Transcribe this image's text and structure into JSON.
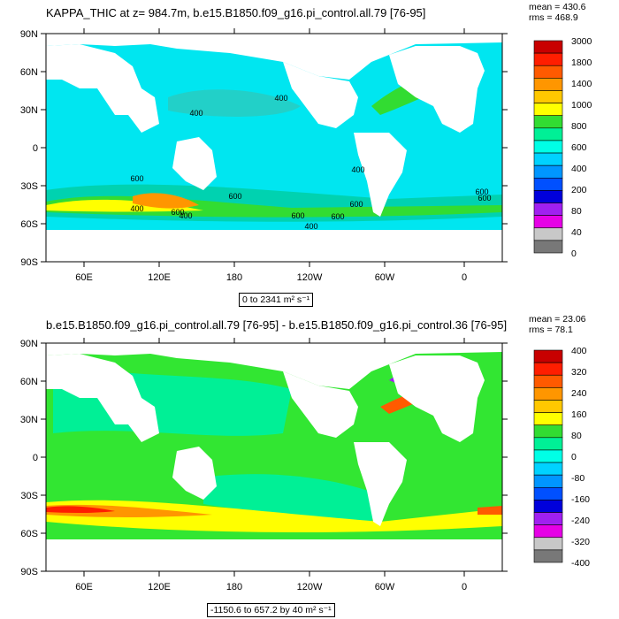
{
  "chart_data": [
    {
      "type": "heatmap",
      "title": "KAPPA_THIC at z= 984.7m, b.e15.B1850.f09_g16.pi_control.all.79 [76-95]",
      "stats": {
        "mean": "mean = 430.6",
        "rms": "rms = 468.9"
      },
      "range_label": "0 to 2341 m² s⁻¹",
      "x_tick_labels": [
        "60E",
        "120E",
        "180",
        "120W",
        "60W",
        "0"
      ],
      "y_tick_labels": [
        "90N",
        "60N",
        "30N",
        "0",
        "30S",
        "60S",
        "90S"
      ],
      "xlim": [
        30,
        390
      ],
      "ylim": [
        -90,
        90
      ],
      "contour_labels": [
        "400",
        "400",
        "400",
        "600",
        "600",
        "600",
        "600",
        "400",
        "400",
        "600",
        "600",
        "400",
        "600",
        "600"
      ],
      "colorbar_labels": [
        "3000",
        "1800",
        "1400",
        "1000",
        "800",
        "600",
        "400",
        "200",
        "80",
        "40",
        "0"
      ],
      "colorbar_colors": [
        "#c80000",
        "#ff1e00",
        "#ff5a00",
        "#ff9600",
        "#ffc800",
        "#ffff00",
        "#32dc32",
        "#00f096",
        "#00ffe6",
        "#00d2ff",
        "#0096ff",
        "#0050ff",
        "#0000dc",
        "#a020f0",
        "#e600e6",
        "#c8c8c8",
        "#787878"
      ]
    },
    {
      "type": "heatmap",
      "title": "b.e15.B1850.f09_g16.pi_control.all.79 [76-95] - b.e15.B1850.f09_g16.pi_control.36 [76-95]",
      "stats": {
        "mean": "mean = 23.06",
        "rms": "rms = 78.1"
      },
      "range_label": "-1150.6 to 657.2 by 40 m² s⁻¹",
      "x_tick_labels": [
        "60E",
        "120E",
        "180",
        "120W",
        "60W",
        "0"
      ],
      "y_tick_labels": [
        "90N",
        "60N",
        "30N",
        "0",
        "30S",
        "60S",
        "90S"
      ],
      "xlim": [
        30,
        390
      ],
      "ylim": [
        -90,
        90
      ],
      "colorbar_labels": [
        "400",
        "320",
        "240",
        "160",
        "80",
        "0",
        "-80",
        "-160",
        "-240",
        "-320",
        "-400"
      ],
      "colorbar_colors": [
        "#c80000",
        "#ff1e00",
        "#ff5a00",
        "#ff9600",
        "#ffc800",
        "#ffff00",
        "#32dc32",
        "#00f096",
        "#00ffe6",
        "#00d2ff",
        "#0096ff",
        "#0050ff",
        "#0000dc",
        "#a020f0",
        "#e600e6",
        "#c8c8c8",
        "#787878"
      ]
    }
  ]
}
